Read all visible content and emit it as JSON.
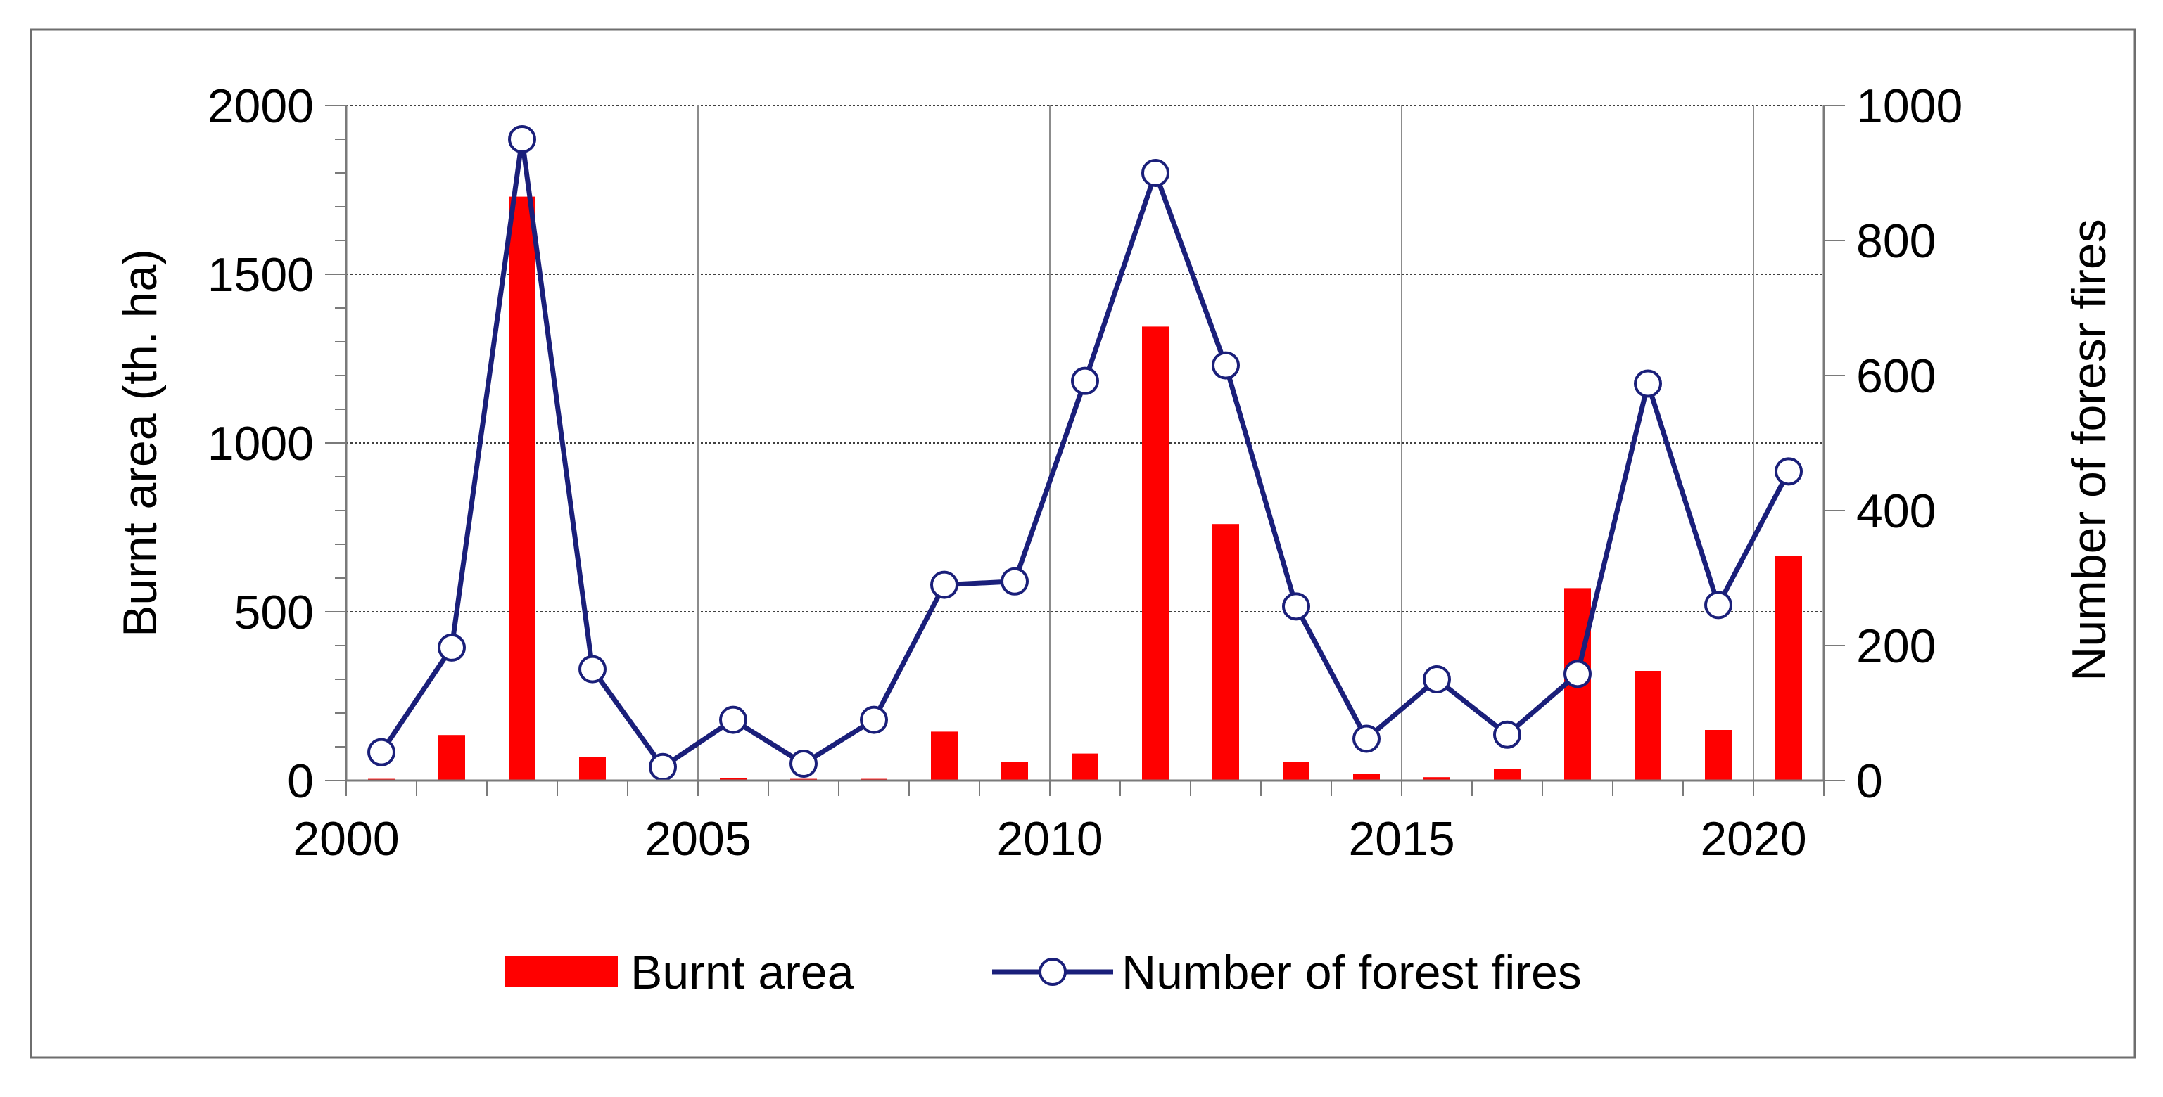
{
  "chart_data": {
    "type": "bar",
    "x": [
      2000,
      2001,
      2002,
      2003,
      2004,
      2005,
      2006,
      2007,
      2008,
      2009,
      2010,
      2011,
      2012,
      2013,
      2014,
      2015,
      2016,
      2017,
      2018,
      2019,
      2020
    ],
    "xlim": [
      2000,
      2021
    ],
    "xticks": [
      2000,
      2005,
      2010,
      2015,
      2020
    ],
    "ylabel": "Burnt area (th. ha)",
    "ylim": [
      0,
      2000
    ],
    "yticks": [
      0,
      500,
      1000,
      1500,
      2000
    ],
    "y2label": "Number of foresr fires",
    "y2lim": [
      0,
      1000
    ],
    "y2ticks": [
      0,
      200,
      400,
      600,
      800,
      1000
    ],
    "grid": true,
    "legend_position": "bottom-center",
    "series": [
      {
        "name": "Burnt area",
        "type": "bar",
        "axis": "left",
        "color": "#ff0000",
        "values": [
          5,
          135,
          1730,
          70,
          0,
          8,
          5,
          5,
          145,
          55,
          80,
          1345,
          760,
          55,
          20,
          10,
          35,
          570,
          325,
          150,
          665
        ]
      },
      {
        "name": "Number of forest fires",
        "type": "line",
        "axis": "right",
        "color": "#1a1f7a",
        "values": [
          42,
          197,
          950,
          165,
          20,
          90,
          25,
          90,
          290,
          295,
          592,
          900,
          615,
          258,
          62,
          150,
          68,
          158,
          588,
          260,
          458
        ]
      }
    ]
  }
}
